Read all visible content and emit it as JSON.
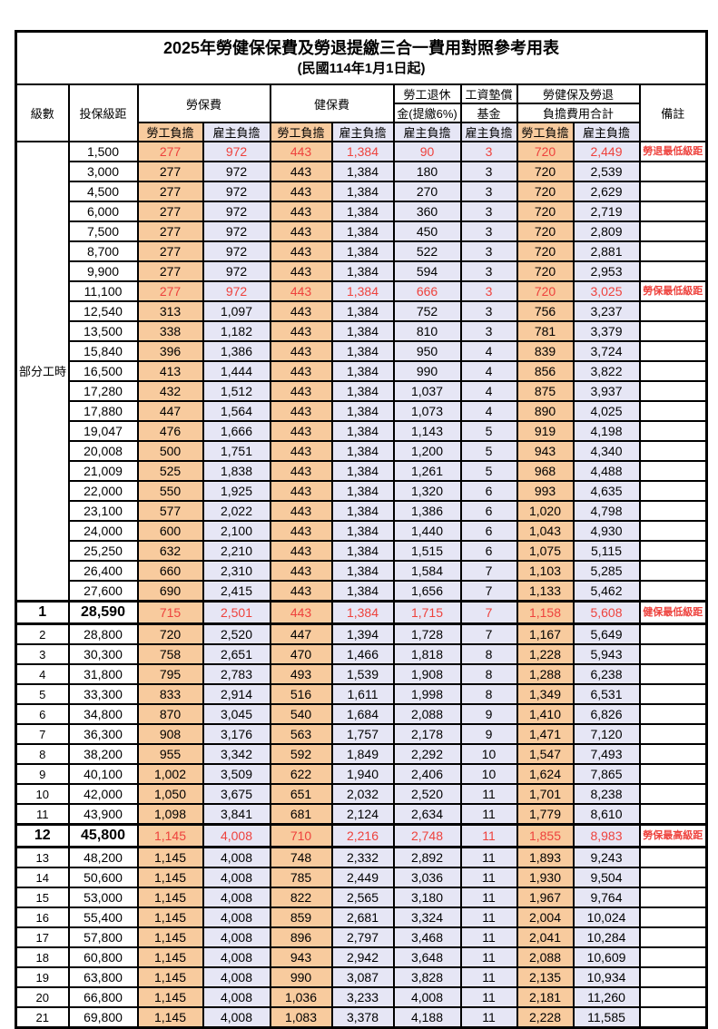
{
  "title": "2025年勞健保保費及勞退提繳三合一費用對照參考用表",
  "subtitle": "(民國114年1月1日起)",
  "colors": {
    "employee_bg": "#f8cb9e",
    "employer_bg": "#e6e6f5",
    "highlight_red": "#ee423d"
  },
  "header": {
    "level": "級數",
    "salary": "投保級距",
    "labor_ins": "勞保費",
    "health_ins": "健保費",
    "pension_l1": "勞工退休",
    "pension_l2": "金(提繳6%)",
    "fund_l1": "工資墊償",
    "fund_l2": "基金",
    "total_l1": "勞健保及勞退",
    "total_l2": "負擔費用合計",
    "remark": "備註",
    "employee": "勞工負擔",
    "employer": "雇主負擔"
  },
  "part_time_label": "部分工時",
  "rows": [
    {
      "level": "部分工時",
      "level_rowspan": 23,
      "salary": "1,500",
      "values": [
        "277",
        "972",
        "443",
        "1,384",
        "90",
        "3",
        "720",
        "2,449"
      ],
      "remark": "勞退最低級距",
      "highlight": true
    },
    {
      "salary": "3,000",
      "values": [
        "277",
        "972",
        "443",
        "1,384",
        "180",
        "3",
        "720",
        "2,539"
      ]
    },
    {
      "salary": "4,500",
      "values": [
        "277",
        "972",
        "443",
        "1,384",
        "270",
        "3",
        "720",
        "2,629"
      ]
    },
    {
      "salary": "6,000",
      "values": [
        "277",
        "972",
        "443",
        "1,384",
        "360",
        "3",
        "720",
        "2,719"
      ]
    },
    {
      "salary": "7,500",
      "values": [
        "277",
        "972",
        "443",
        "1,384",
        "450",
        "3",
        "720",
        "2,809"
      ]
    },
    {
      "salary": "8,700",
      "values": [
        "277",
        "972",
        "443",
        "1,384",
        "522",
        "3",
        "720",
        "2,881"
      ]
    },
    {
      "salary": "9,900",
      "values": [
        "277",
        "972",
        "443",
        "1,384",
        "594",
        "3",
        "720",
        "2,953"
      ]
    },
    {
      "salary": "11,100",
      "values": [
        "277",
        "972",
        "443",
        "1,384",
        "666",
        "3",
        "720",
        "3,025"
      ],
      "remark": "勞保最低級距",
      "highlight": true
    },
    {
      "salary": "12,540",
      "values": [
        "313",
        "1,097",
        "443",
        "1,384",
        "752",
        "3",
        "756",
        "3,237"
      ]
    },
    {
      "salary": "13,500",
      "values": [
        "338",
        "1,182",
        "443",
        "1,384",
        "810",
        "3",
        "781",
        "3,379"
      ]
    },
    {
      "salary": "15,840",
      "values": [
        "396",
        "1,386",
        "443",
        "1,384",
        "950",
        "4",
        "839",
        "3,724"
      ]
    },
    {
      "salary": "16,500",
      "values": [
        "413",
        "1,444",
        "443",
        "1,384",
        "990",
        "4",
        "856",
        "3,822"
      ]
    },
    {
      "salary": "17,280",
      "values": [
        "432",
        "1,512",
        "443",
        "1,384",
        "1,037",
        "4",
        "875",
        "3,937"
      ]
    },
    {
      "salary": "17,880",
      "values": [
        "447",
        "1,564",
        "443",
        "1,384",
        "1,073",
        "4",
        "890",
        "4,025"
      ]
    },
    {
      "salary": "19,047",
      "values": [
        "476",
        "1,666",
        "443",
        "1,384",
        "1,143",
        "5",
        "919",
        "4,198"
      ]
    },
    {
      "salary": "20,008",
      "values": [
        "500",
        "1,751",
        "443",
        "1,384",
        "1,200",
        "5",
        "943",
        "4,340"
      ]
    },
    {
      "salary": "21,009",
      "values": [
        "525",
        "1,838",
        "443",
        "1,384",
        "1,261",
        "5",
        "968",
        "4,488"
      ]
    },
    {
      "salary": "22,000",
      "values": [
        "550",
        "1,925",
        "443",
        "1,384",
        "1,320",
        "6",
        "993",
        "4,635"
      ]
    },
    {
      "salary": "23,100",
      "values": [
        "577",
        "2,022",
        "443",
        "1,384",
        "1,386",
        "6",
        "1,020",
        "4,798"
      ]
    },
    {
      "salary": "24,000",
      "values": [
        "600",
        "2,100",
        "443",
        "1,384",
        "1,440",
        "6",
        "1,043",
        "4,930"
      ]
    },
    {
      "salary": "25,250",
      "values": [
        "632",
        "2,210",
        "443",
        "1,384",
        "1,515",
        "6",
        "1,075",
        "5,115"
      ]
    },
    {
      "salary": "26,400",
      "values": [
        "660",
        "2,310",
        "443",
        "1,384",
        "1,584",
        "7",
        "1,103",
        "5,285"
      ]
    },
    {
      "salary": "27,600",
      "values": [
        "690",
        "2,415",
        "443",
        "1,384",
        "1,656",
        "7",
        "1,133",
        "5,462"
      ]
    },
    {
      "level": "1",
      "salary": "28,590",
      "values": [
        "715",
        "2,501",
        "443",
        "1,384",
        "1,715",
        "7",
        "1,158",
        "5,608"
      ],
      "remark": "健保最低級距",
      "highlight": true,
      "emphasis": true
    },
    {
      "level": "2",
      "salary": "28,800",
      "values": [
        "720",
        "2,520",
        "447",
        "1,394",
        "1,728",
        "7",
        "1,167",
        "5,649"
      ]
    },
    {
      "level": "3",
      "salary": "30,300",
      "values": [
        "758",
        "2,651",
        "470",
        "1,466",
        "1,818",
        "8",
        "1,228",
        "5,943"
      ]
    },
    {
      "level": "4",
      "salary": "31,800",
      "values": [
        "795",
        "2,783",
        "493",
        "1,539",
        "1,908",
        "8",
        "1,288",
        "6,238"
      ]
    },
    {
      "level": "5",
      "salary": "33,300",
      "values": [
        "833",
        "2,914",
        "516",
        "1,611",
        "1,998",
        "8",
        "1,349",
        "6,531"
      ]
    },
    {
      "level": "6",
      "salary": "34,800",
      "values": [
        "870",
        "3,045",
        "540",
        "1,684",
        "2,088",
        "9",
        "1,410",
        "6,826"
      ]
    },
    {
      "level": "7",
      "salary": "36,300",
      "values": [
        "908",
        "3,176",
        "563",
        "1,757",
        "2,178",
        "9",
        "1,471",
        "7,120"
      ]
    },
    {
      "level": "8",
      "salary": "38,200",
      "values": [
        "955",
        "3,342",
        "592",
        "1,849",
        "2,292",
        "10",
        "1,547",
        "7,493"
      ]
    },
    {
      "level": "9",
      "salary": "40,100",
      "values": [
        "1,002",
        "3,509",
        "622",
        "1,940",
        "2,406",
        "10",
        "1,624",
        "7,865"
      ]
    },
    {
      "level": "10",
      "salary": "42,000",
      "values": [
        "1,050",
        "3,675",
        "651",
        "2,032",
        "2,520",
        "11",
        "1,701",
        "8,238"
      ]
    },
    {
      "level": "11",
      "salary": "43,900",
      "values": [
        "1,098",
        "3,841",
        "681",
        "2,124",
        "2,634",
        "11",
        "1,779",
        "8,610"
      ]
    },
    {
      "level": "12",
      "salary": "45,800",
      "values": [
        "1,145",
        "4,008",
        "710",
        "2,216",
        "2,748",
        "11",
        "1,855",
        "8,983"
      ],
      "remark": "勞保最高級距",
      "highlight": true,
      "emphasis": true
    },
    {
      "level": "13",
      "salary": "48,200",
      "values": [
        "1,145",
        "4,008",
        "748",
        "2,332",
        "2,892",
        "11",
        "1,893",
        "9,243"
      ]
    },
    {
      "level": "14",
      "salary": "50,600",
      "values": [
        "1,145",
        "4,008",
        "785",
        "2,449",
        "3,036",
        "11",
        "1,930",
        "9,504"
      ]
    },
    {
      "level": "15",
      "salary": "53,000",
      "values": [
        "1,145",
        "4,008",
        "822",
        "2,565",
        "3,180",
        "11",
        "1,967",
        "9,764"
      ]
    },
    {
      "level": "16",
      "salary": "55,400",
      "values": [
        "1,145",
        "4,008",
        "859",
        "2,681",
        "3,324",
        "11",
        "2,004",
        "10,024"
      ]
    },
    {
      "level": "17",
      "salary": "57,800",
      "values": [
        "1,145",
        "4,008",
        "896",
        "2,797",
        "3,468",
        "11",
        "2,041",
        "10,284"
      ]
    },
    {
      "level": "18",
      "salary": "60,800",
      "values": [
        "1,145",
        "4,008",
        "943",
        "2,942",
        "3,648",
        "11",
        "2,088",
        "10,609"
      ]
    },
    {
      "level": "19",
      "salary": "63,800",
      "values": [
        "1,145",
        "4,008",
        "990",
        "3,087",
        "3,828",
        "11",
        "2,135",
        "10,934"
      ]
    },
    {
      "level": "20",
      "salary": "66,800",
      "values": [
        "1,145",
        "4,008",
        "1,036",
        "3,233",
        "4,008",
        "11",
        "2,181",
        "11,260"
      ]
    },
    {
      "level": "21",
      "salary": "69,800",
      "values": [
        "1,145",
        "4,008",
        "1,083",
        "3,378",
        "4,188",
        "11",
        "2,228",
        "11,585"
      ]
    }
  ]
}
